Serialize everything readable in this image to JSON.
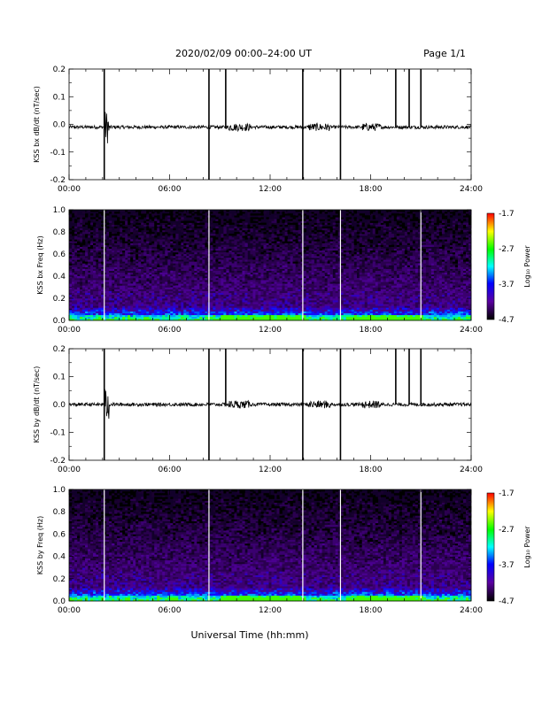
{
  "header": {
    "title": "2020/02/09  00:00–24:00 UT",
    "page": "Page 1/1"
  },
  "xaxis": {
    "title": "Universal Time (hh:mm)",
    "range_hours": [
      0,
      24
    ],
    "tick_hours": [
      0,
      6,
      12,
      18,
      24
    ],
    "tick_labels": [
      "00:00",
      "06:00",
      "12:00",
      "18:00",
      "24:00"
    ]
  },
  "colorbar": {
    "label": "Log₁₀ Power",
    "range": [
      -4.7,
      -1.7
    ],
    "tick_labels": [
      "-1.7",
      "-2.7",
      "-3.7",
      "-4.7"
    ],
    "colors": [
      "#ff0000",
      "#ffff00",
      "#00ff00",
      "#00ffff",
      "#0000ff",
      "#5a00a0",
      "#000000"
    ]
  },
  "chart_data": [
    {
      "type": "line",
      "ylabel": "KSS bx dB/dt (nT/sec)",
      "ylim": [
        -0.2,
        0.2
      ],
      "y_ticks": [
        -0.2,
        -0.1,
        0.0,
        0.1,
        0.2
      ],
      "y_tick_labels": [
        "-0.2",
        "-0.1",
        "0.0",
        "0.1",
        "0.2"
      ],
      "baseline": -0.01,
      "spikes": [
        {
          "t": 2.1,
          "low": -0.2,
          "high": 0.2
        },
        {
          "t": 8.35,
          "low": -0.2,
          "high": 0.2
        },
        {
          "t": 9.35,
          "low": -0.01,
          "high": 0.2
        },
        {
          "t": 13.95,
          "low": -0.2,
          "high": 0.2
        },
        {
          "t": 16.2,
          "low": -0.2,
          "high": 0.2
        },
        {
          "t": 19.5,
          "low": -0.01,
          "high": 0.2
        },
        {
          "t": 20.3,
          "low": -0.01,
          "high": 0.2
        },
        {
          "t": 21.0,
          "low": -0.01,
          "high": 0.2
        }
      ]
    },
    {
      "type": "heatmap",
      "ylabel": "KSS bx Freq (Hz)",
      "ylim": [
        0.0,
        1.0
      ],
      "y_ticks": [
        0.0,
        0.2,
        0.4,
        0.6,
        0.8,
        1.0
      ],
      "y_tick_labels": [
        "0.0",
        "0.2",
        "0.4",
        "0.6",
        "0.8",
        "1.0"
      ],
      "gaps_hours": [
        2.1,
        8.35,
        13.95,
        16.2,
        21.0
      ]
    },
    {
      "type": "line",
      "ylabel": "KSS by dB/dt (nT/sec)",
      "ylim": [
        -0.2,
        0.2
      ],
      "y_ticks": [
        -0.2,
        -0.1,
        0.0,
        0.1,
        0.2
      ],
      "y_tick_labels": [
        "-0.2",
        "-0.1",
        "0.0",
        "0.1",
        "0.2"
      ],
      "baseline": 0.0,
      "spikes": [
        {
          "t": 2.1,
          "low": -0.2,
          "high": 0.2
        },
        {
          "t": 8.35,
          "low": -0.2,
          "high": 0.2
        },
        {
          "t": 9.35,
          "low": 0.0,
          "high": 0.2
        },
        {
          "t": 13.95,
          "low": -0.2,
          "high": 0.2
        },
        {
          "t": 16.2,
          "low": -0.2,
          "high": 0.2
        },
        {
          "t": 19.5,
          "low": 0.0,
          "high": 0.2
        },
        {
          "t": 20.3,
          "low": 0.0,
          "high": 0.2
        },
        {
          "t": 21.0,
          "low": 0.0,
          "high": 0.2
        }
      ]
    },
    {
      "type": "heatmap",
      "ylabel": "KSS by Freq (Hz)",
      "ylim": [
        0.0,
        1.0
      ],
      "y_ticks": [
        0.0,
        0.2,
        0.4,
        0.6,
        0.8,
        1.0
      ],
      "y_tick_labels": [
        "0.0",
        "0.2",
        "0.4",
        "0.6",
        "0.8",
        "1.0"
      ],
      "gaps_hours": [
        2.1,
        8.35,
        13.95,
        16.2,
        21.0
      ]
    }
  ]
}
